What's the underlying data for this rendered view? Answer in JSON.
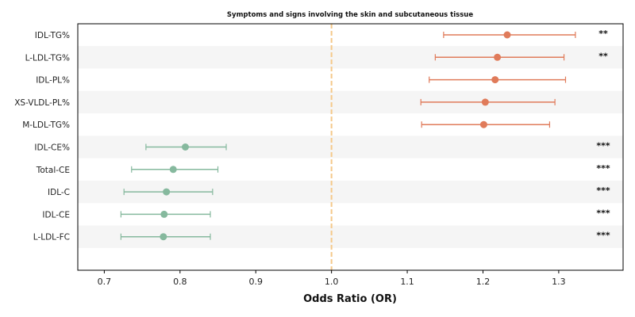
{
  "chart_data": {
    "type": "forest",
    "title": "Symptoms and signs involving the skin and subcutaneous tissue",
    "xlabel": "Odds Ratio (OR)",
    "ylabel": "",
    "xlim": [
      0.665,
      1.385
    ],
    "xticks": [
      "0.7",
      "0.8",
      "0.9",
      "1.0",
      "1.1",
      "1.2",
      "1.3"
    ],
    "xtick_values": [
      0.7,
      0.8,
      0.9,
      1.0,
      1.1,
      1.2,
      1.3
    ],
    "reference_line": 1.0,
    "grid": false,
    "row_striping": true,
    "colors": {
      "positive": "#e07b5a",
      "negative": "#86b99e",
      "reference": "#f5c98a",
      "stripe": "#f5f5f5"
    },
    "rows": [
      {
        "label": "IDL-TG%",
        "or": 1.232,
        "lower": 1.148,
        "upper": 1.322,
        "sig": "**"
      },
      {
        "label": "L-LDL-TG%",
        "or": 1.219,
        "lower": 1.137,
        "upper": 1.307,
        "sig": "**"
      },
      {
        "label": "IDL-PL%",
        "or": 1.216,
        "lower": 1.129,
        "upper": 1.309,
        "sig": ""
      },
      {
        "label": "XS-VLDL-PL%",
        "or": 1.203,
        "lower": 1.118,
        "upper": 1.295,
        "sig": ""
      },
      {
        "label": "M-LDL-TG%",
        "or": 1.201,
        "lower": 1.119,
        "upper": 1.288,
        "sig": ""
      },
      {
        "label": "IDL-CE%",
        "or": 0.807,
        "lower": 0.755,
        "upper": 0.861,
        "sig": "***"
      },
      {
        "label": "Total-CE",
        "or": 0.791,
        "lower": 0.736,
        "upper": 0.85,
        "sig": "***"
      },
      {
        "label": "IDL-C",
        "or": 0.782,
        "lower": 0.726,
        "upper": 0.843,
        "sig": "***"
      },
      {
        "label": "IDL-CE",
        "or": 0.779,
        "lower": 0.722,
        "upper": 0.84,
        "sig": "***"
      },
      {
        "label": "L-LDL-FC",
        "or": 0.778,
        "lower": 0.722,
        "upper": 0.84,
        "sig": "***"
      }
    ]
  }
}
